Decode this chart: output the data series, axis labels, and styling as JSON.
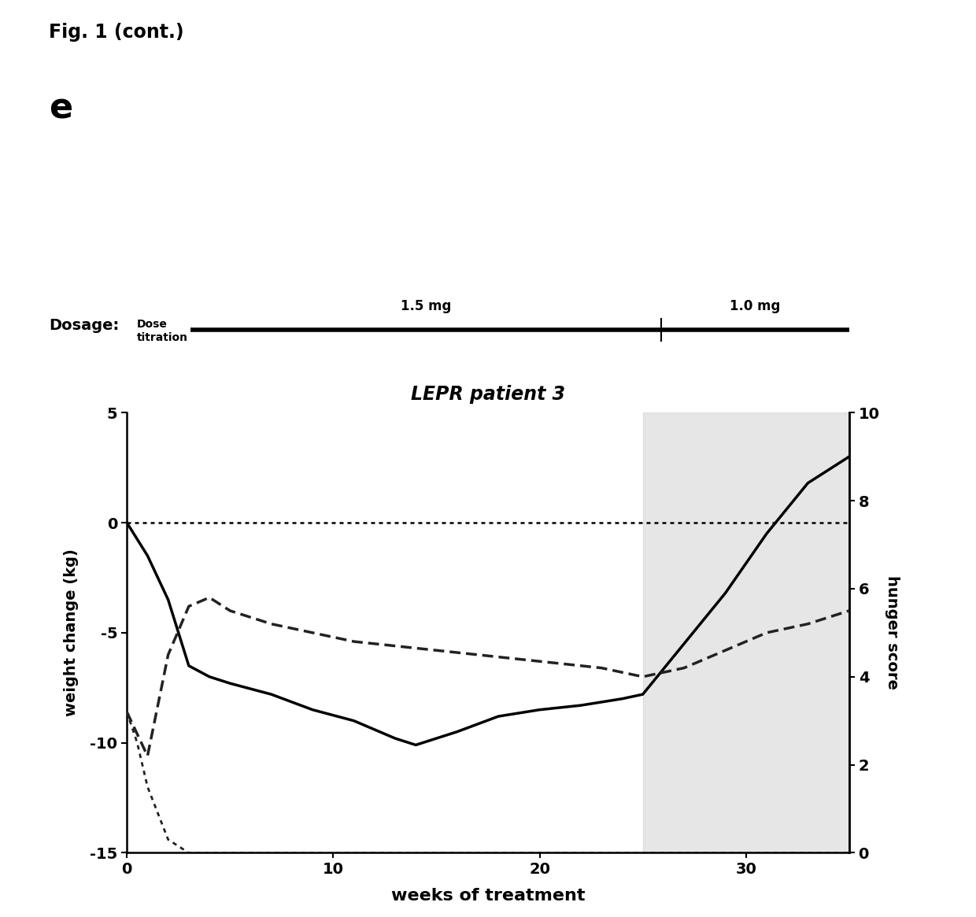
{
  "fig_label": "Fig. 1 (cont.)",
  "panel_label": "e",
  "subtitle": "LEPR patient 3",
  "dosage_label": "Dosage:",
  "dose_titration_text": "Dose\ntitration",
  "dose_1": "1.5 mg",
  "dose_2": "1.0 mg",
  "xlabel": "weeks of treatment",
  "ylabel_left": "weight change (kg)",
  "ylabel_right": "hunger score",
  "xlim": [
    0,
    35
  ],
  "ylim_left": [
    -15,
    5
  ],
  "ylim_right": [
    0,
    10
  ],
  "xticks": [
    0,
    10,
    20,
    30
  ],
  "yticks_left": [
    -15,
    -10,
    -5,
    0,
    5
  ],
  "yticks_right": [
    0,
    2,
    4,
    6,
    8,
    10
  ],
  "shaded_region_start": 25,
  "shaded_region_end": 35,
  "shaded_color": "#c8c8c8",
  "shaded_alpha": 0.45,
  "weight_x": [
    0,
    1,
    2,
    3,
    4,
    5,
    7,
    9,
    11,
    13,
    14,
    16,
    18,
    20,
    22,
    24,
    25,
    27,
    29,
    31,
    33,
    35
  ],
  "weight_y": [
    0.0,
    -1.5,
    -3.5,
    -6.5,
    -7.0,
    -7.3,
    -7.8,
    -8.5,
    -9.0,
    -9.8,
    -10.1,
    -9.5,
    -8.8,
    -8.5,
    -8.3,
    -8.0,
    -7.8,
    -5.5,
    -3.2,
    -0.5,
    1.8,
    3.0
  ],
  "hunger_score_x": [
    0,
    0.5,
    1,
    2,
    3,
    4,
    5,
    7,
    9,
    11,
    13,
    15,
    17,
    19,
    21,
    23,
    24,
    25,
    27,
    29,
    31,
    33,
    35
  ],
  "hunger_score_y": [
    3.2,
    2.5,
    1.5,
    0.3,
    0.0,
    0.0,
    0.0,
    0.0,
    0.0,
    0.0,
    0.0,
    0.0,
    0.0,
    0.0,
    0.0,
    0.0,
    0.0,
    0.0,
    0.0,
    0.0,
    0.0,
    0.0,
    0.0
  ],
  "hunger_score2_x": [
    0,
    1,
    2,
    3,
    4,
    5,
    7,
    9,
    11,
    13,
    15,
    17,
    19,
    21,
    23,
    24,
    25,
    27,
    29,
    31,
    33,
    35
  ],
  "hunger_score2_y": [
    3.2,
    2.2,
    4.5,
    5.6,
    5.8,
    5.5,
    5.2,
    5.0,
    4.8,
    4.7,
    4.6,
    4.5,
    4.4,
    4.3,
    4.2,
    4.1,
    4.0,
    4.2,
    4.6,
    5.0,
    5.2,
    5.5
  ],
  "line_color": "#000000",
  "dashed_color": "#222222",
  "background_color": "#ffffff"
}
